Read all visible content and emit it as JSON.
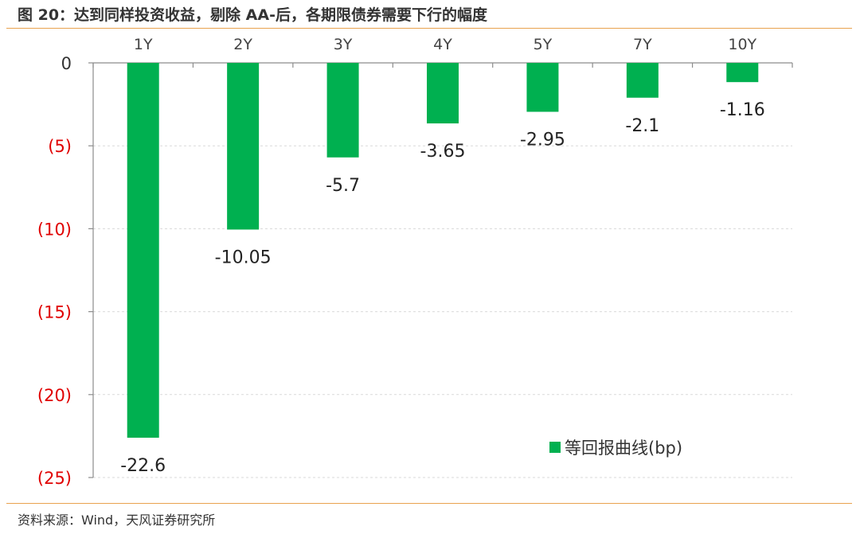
{
  "header": {
    "title": "图 20：达到同样投资收益，剔除 AA-后，各期限债券需要下行的幅度"
  },
  "footer": {
    "source": "资料来源：Wind，天风证券研究所"
  },
  "colors": {
    "bar": "#00B050",
    "accent_rule": "#E9A24F",
    "negative_tick": "#E00000"
  },
  "chart_data": {
    "type": "bar",
    "categories": [
      "1Y",
      "2Y",
      "3Y",
      "4Y",
      "5Y",
      "7Y",
      "10Y"
    ],
    "series": [
      {
        "name": "等回报曲线(bp)",
        "values": [
          -22.6,
          -10.05,
          -5.7,
          -3.65,
          -2.95,
          -2.1,
          -1.16
        ]
      }
    ],
    "data_labels": [
      "-22.6",
      "-10.05",
      "-5.7",
      "-3.65",
      "-2.95",
      "-2.1",
      "-1.16"
    ],
    "y_ticks": [
      0,
      -5,
      -10,
      -15,
      -20,
      -25
    ],
    "y_tick_labels": [
      "0",
      "(5)",
      "(10)",
      "(15)",
      "(20)",
      "(25)"
    ],
    "ylim": [
      -25,
      0
    ],
    "xaxis_position": "top",
    "grid": true,
    "legend_position": "bottom-right",
    "title": "",
    "xlabel": "",
    "ylabel": ""
  }
}
